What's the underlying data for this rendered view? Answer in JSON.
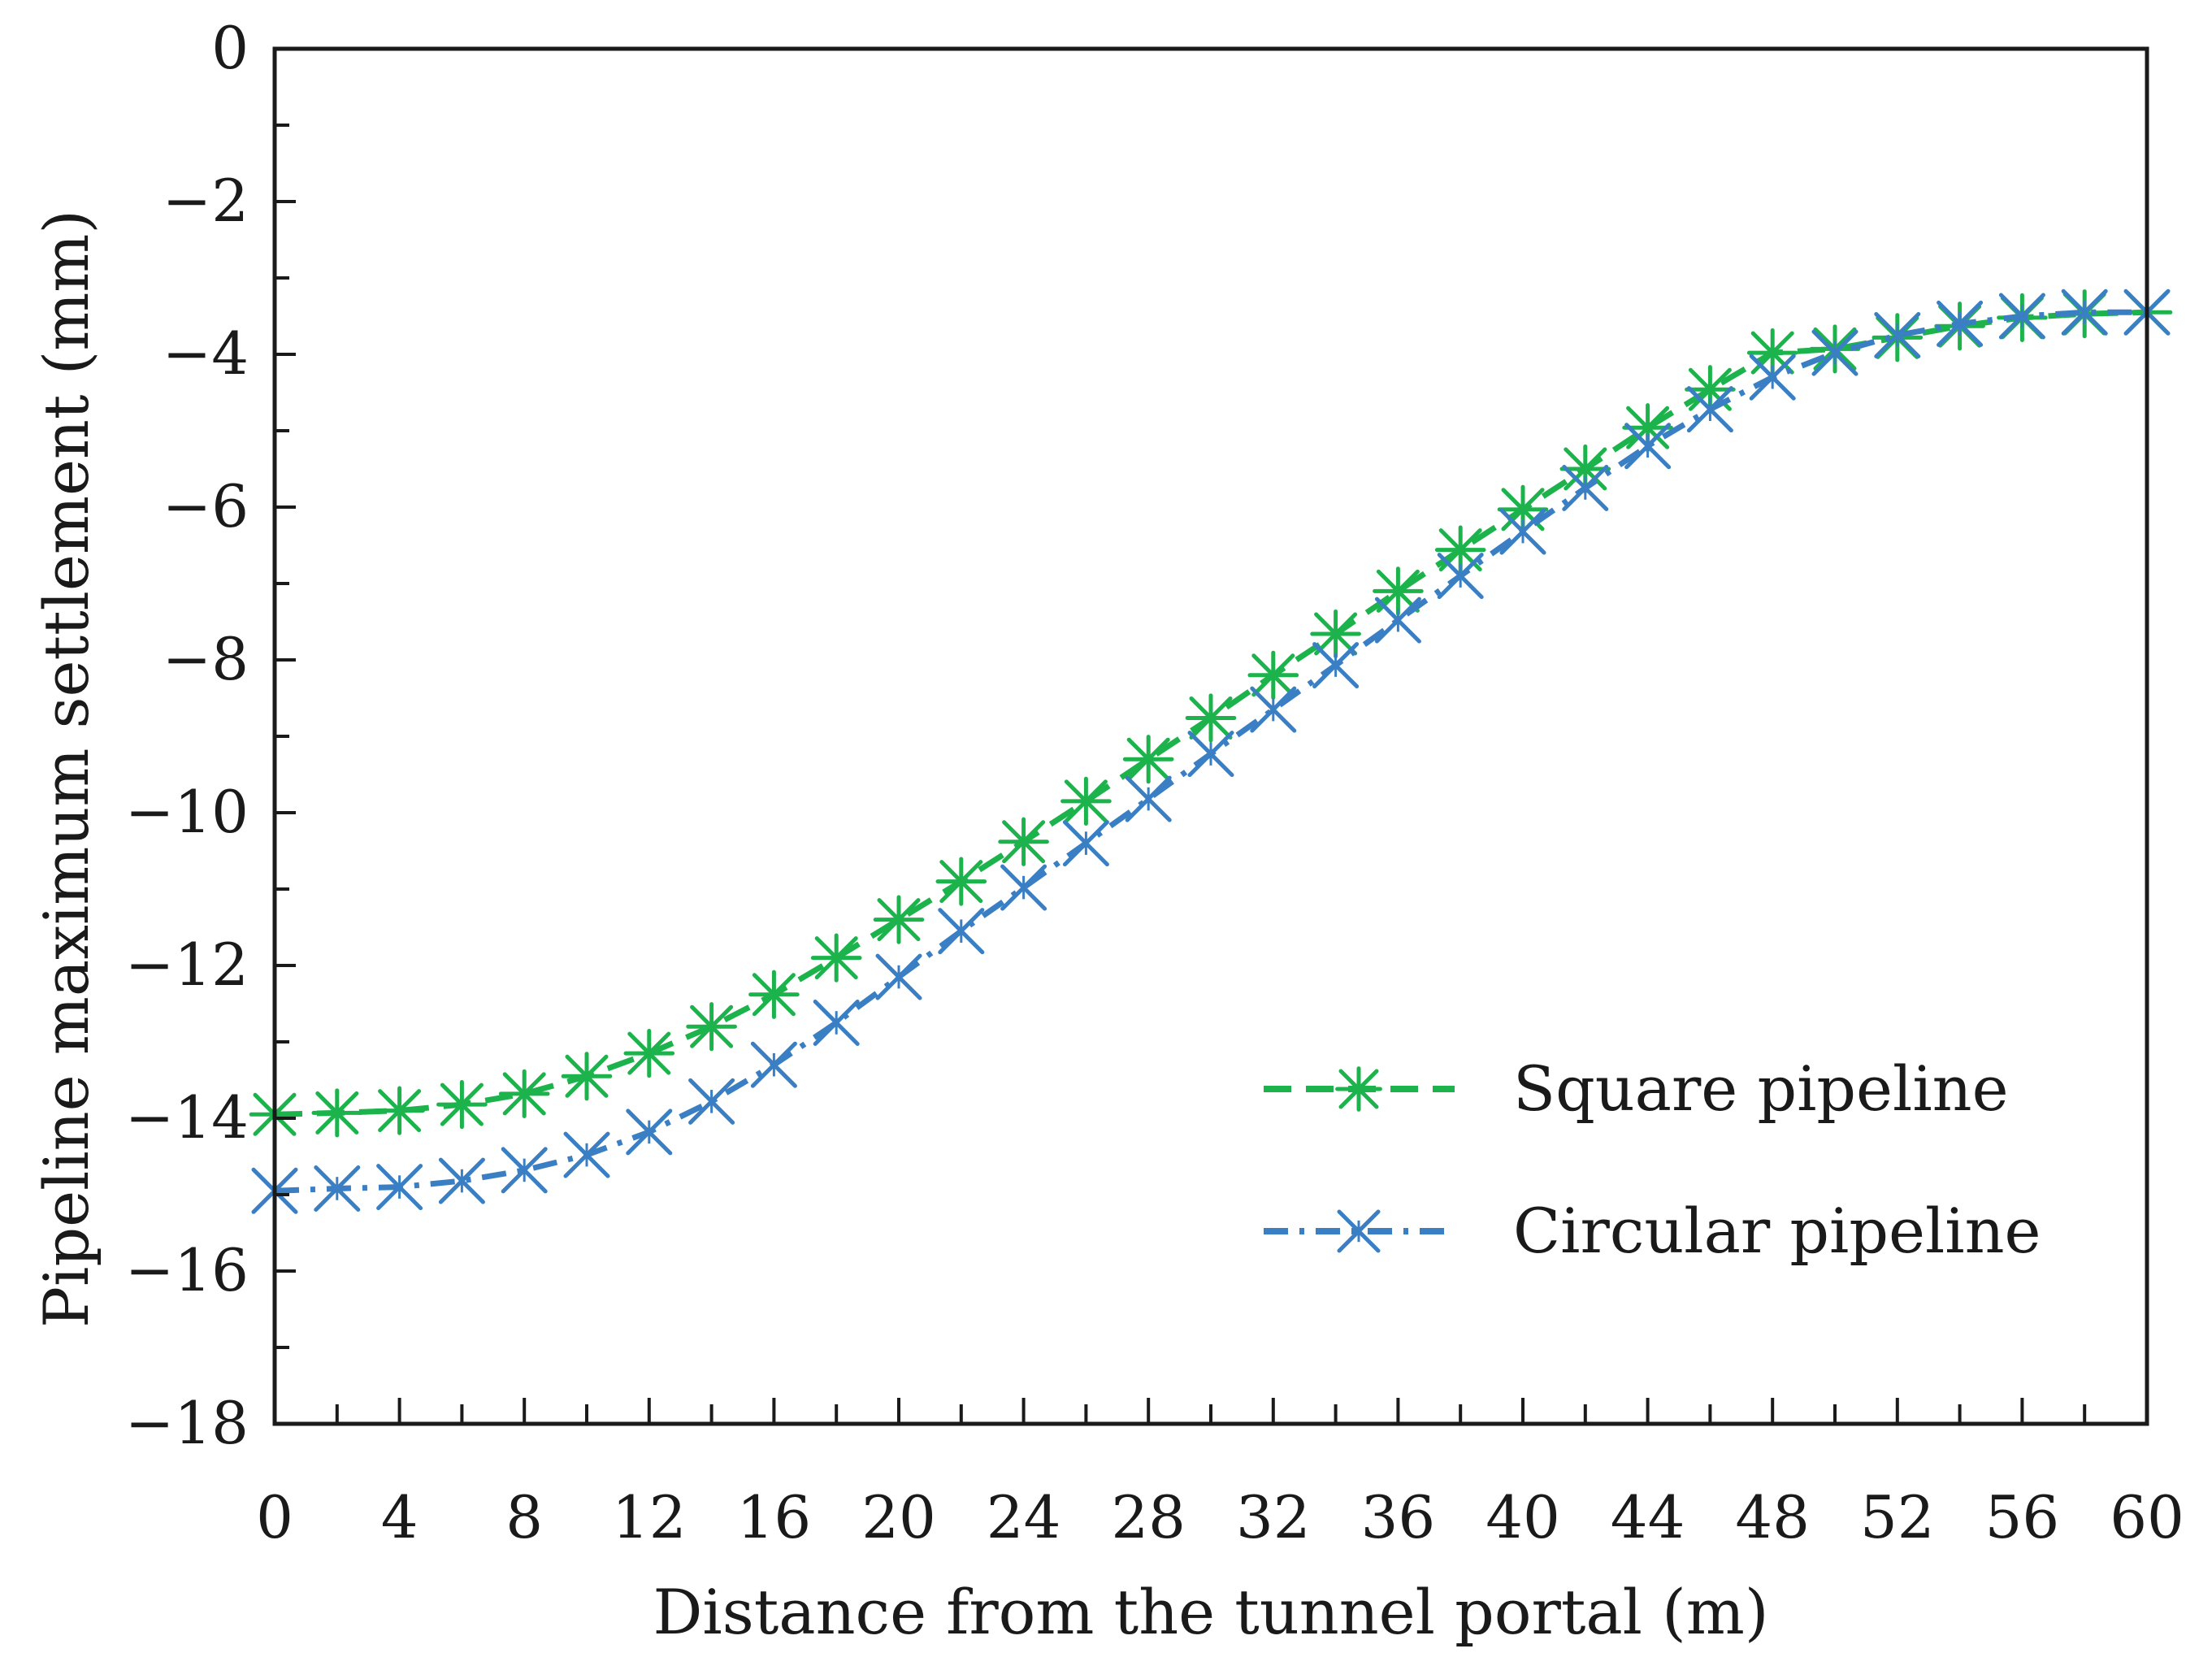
{
  "chart_data": {
    "type": "line",
    "title": "",
    "xlabel": "Distance from the tunnel portal (m)",
    "ylabel": "Pipeline maximum settlement (mm)",
    "xlim": [
      0,
      60
    ],
    "ylim": [
      -18,
      0
    ],
    "x_ticks": [
      0,
      4,
      8,
      12,
      16,
      20,
      24,
      28,
      32,
      36,
      40,
      44,
      48,
      52,
      56,
      60
    ],
    "y_ticks": [
      0,
      -2,
      -4,
      -6,
      -8,
      -10,
      -12,
      -14,
      -16,
      -18
    ],
    "x_tick_labels": [
      "0",
      "4",
      "8",
      "12",
      "16",
      "20",
      "24",
      "28",
      "32",
      "36",
      "40",
      "44",
      "48",
      "52",
      "56",
      "60"
    ],
    "y_tick_labels": [
      "0",
      "−2",
      "−4",
      "−6",
      "−8",
      "−10",
      "−12",
      "−14",
      "−16",
      "−18"
    ],
    "grid": false,
    "legend_position": "lower-right",
    "x": [
      0,
      2,
      4,
      6,
      8,
      10,
      12,
      14,
      16,
      18,
      20,
      22,
      24,
      26,
      28,
      30,
      32,
      34,
      36,
      38,
      40,
      42,
      44,
      46,
      48,
      50,
      52,
      54,
      56,
      58,
      60
    ],
    "series": [
      {
        "name": "Square pipeline",
        "color": "#1db34c",
        "line_style": "dashed",
        "marker": "asterisk",
        "values": [
          -13.95,
          -13.93,
          -13.9,
          -13.82,
          -13.68,
          -13.45,
          -13.15,
          -12.8,
          -12.38,
          -11.9,
          -11.4,
          -10.9,
          -10.38,
          -9.85,
          -9.3,
          -8.76,
          -8.2,
          -7.66,
          -7.1,
          -6.56,
          -6.03,
          -5.5,
          -4.96,
          -4.46,
          -3.98,
          -3.93,
          -3.78,
          -3.63,
          -3.52,
          -3.47,
          -3.45
        ]
      },
      {
        "name": "Circular pipeline",
        "color": "#3a7fc4",
        "line_style": "dash-dot",
        "marker": "cross",
        "values": [
          -14.95,
          -14.92,
          -14.9,
          -14.82,
          -14.68,
          -14.48,
          -14.18,
          -13.78,
          -13.3,
          -12.75,
          -12.15,
          -11.55,
          -10.98,
          -10.4,
          -9.82,
          -9.23,
          -8.65,
          -8.07,
          -7.48,
          -6.9,
          -6.32,
          -5.75,
          -5.2,
          -4.72,
          -4.3,
          -3.98,
          -3.75,
          -3.6,
          -3.5,
          -3.45,
          -3.45
        ]
      }
    ]
  }
}
